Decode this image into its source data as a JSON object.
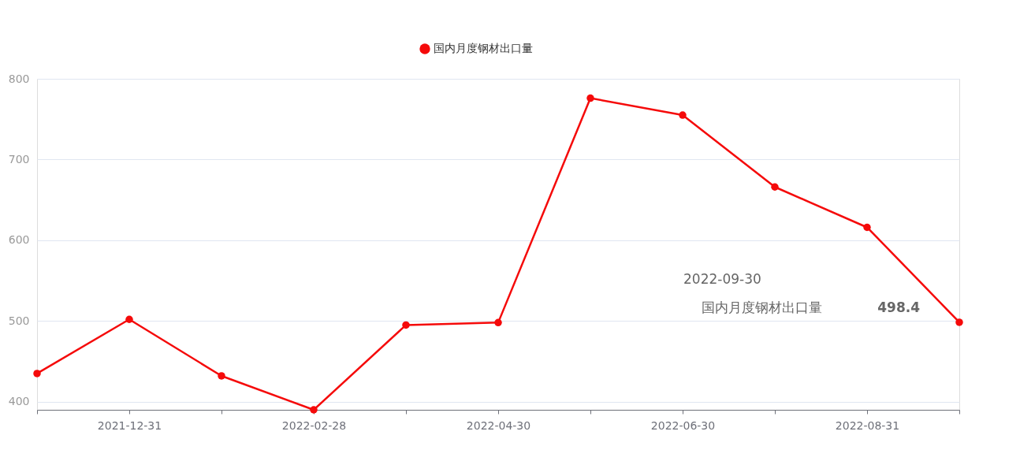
{
  "chart_data": {
    "type": "line",
    "categories": [
      null,
      "2021-12-31",
      null,
      "2022-02-28",
      null,
      "2022-04-30",
      null,
      "2022-06-30",
      null,
      "2022-08-31",
      null
    ],
    "series": [
      {
        "name": "国内月度钢材出口量",
        "color": "#f50a0a",
        "values": [
          435,
          502,
          432,
          390,
          495,
          498,
          776,
          755,
          666,
          616,
          498.4
        ]
      }
    ],
    "ylim": [
      390,
      800
    ],
    "yticks": [
      400,
      500,
      600,
      700,
      800
    ],
    "grid": "y",
    "legend": "top",
    "marker": "circle",
    "line_style": "solid",
    "annotations": [
      "2022-09-30",
      "498.4"
    ]
  }
}
